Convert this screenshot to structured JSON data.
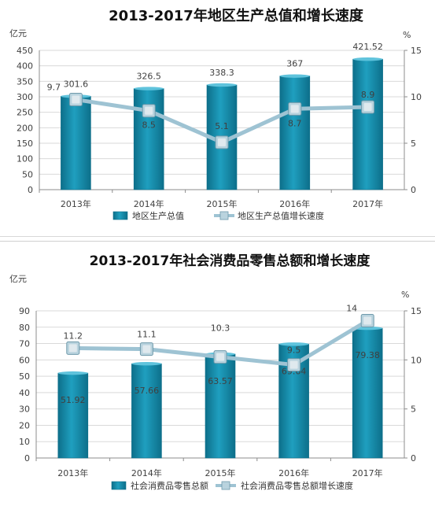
{
  "chart_data": [
    {
      "type": "bar",
      "title": "2013-2017年地区生产总值和增长速度",
      "unit_left": "亿元",
      "unit_right": "%",
      "categories": [
        "2013年",
        "2014年",
        "2015年",
        "2016年",
        "2017年"
      ],
      "y_ticks": [
        "0",
        "50",
        "100",
        "150",
        "200",
        "250",
        "300",
        "350",
        "400",
        "450"
      ],
      "y2_ticks": [
        "0",
        "5",
        "10",
        "15"
      ],
      "ylim": [
        0,
        450
      ],
      "y2lim": [
        0,
        15
      ],
      "grid": true,
      "legend_position": "bottom",
      "series": [
        {
          "name": "地区生产总值",
          "type": "bar",
          "axis": "left",
          "values": [
            301.6,
            326.5,
            338.3,
            367,
            421.52
          ],
          "labels": [
            "301.6",
            "326.5",
            "338.3",
            "367",
            "421.52"
          ]
        },
        {
          "name": "地区生产总值增长速度",
          "type": "line",
          "axis": "right",
          "values": [
            9.7,
            8.5,
            5.1,
            8.7,
            8.9
          ],
          "labels": [
            "9.7",
            "8.5",
            "5.1",
            "8.7",
            "8.9"
          ]
        }
      ],
      "colors": {
        "bar": "#1f9fbf",
        "bar_dark": "#0d6f8a",
        "line": "#9ec3d3",
        "marker": "#b9d3de"
      }
    },
    {
      "type": "bar",
      "title": "2013-2017年社会消费品零售总额和增长速度",
      "unit_left": "亿元",
      "unit_right": "%",
      "categories": [
        "2013年",
        "2014年",
        "2015年",
        "2016年",
        "2017年"
      ],
      "y_ticks": [
        "0",
        "10",
        "20",
        "30",
        "40",
        "50",
        "60",
        "70",
        "80",
        "90"
      ],
      "y2_ticks": [
        "0",
        "5",
        "10",
        "15"
      ],
      "ylim": [
        0,
        90
      ],
      "y2lim": [
        0,
        15
      ],
      "grid": true,
      "legend_position": "bottom",
      "series": [
        {
          "name": "社会消费品零售总额",
          "type": "bar",
          "axis": "left",
          "values": [
            51.92,
            57.66,
            63.57,
            69.64,
            79.38
          ],
          "labels": [
            "51.92",
            "57.66",
            "63.57",
            "69.64",
            "79.38"
          ]
        },
        {
          "name": "社会消费品零售总额增长速度",
          "type": "line",
          "axis": "right",
          "values": [
            11.2,
            11.1,
            10.3,
            9.5,
            14
          ],
          "labels": [
            "11.2",
            "11.1",
            "10.3",
            "9.5",
            "14"
          ]
        }
      ],
      "colors": {
        "bar": "#1f9fbf",
        "bar_dark": "#0d6f8a",
        "line": "#9ec3d3",
        "marker": "#b9d3de"
      }
    }
  ]
}
